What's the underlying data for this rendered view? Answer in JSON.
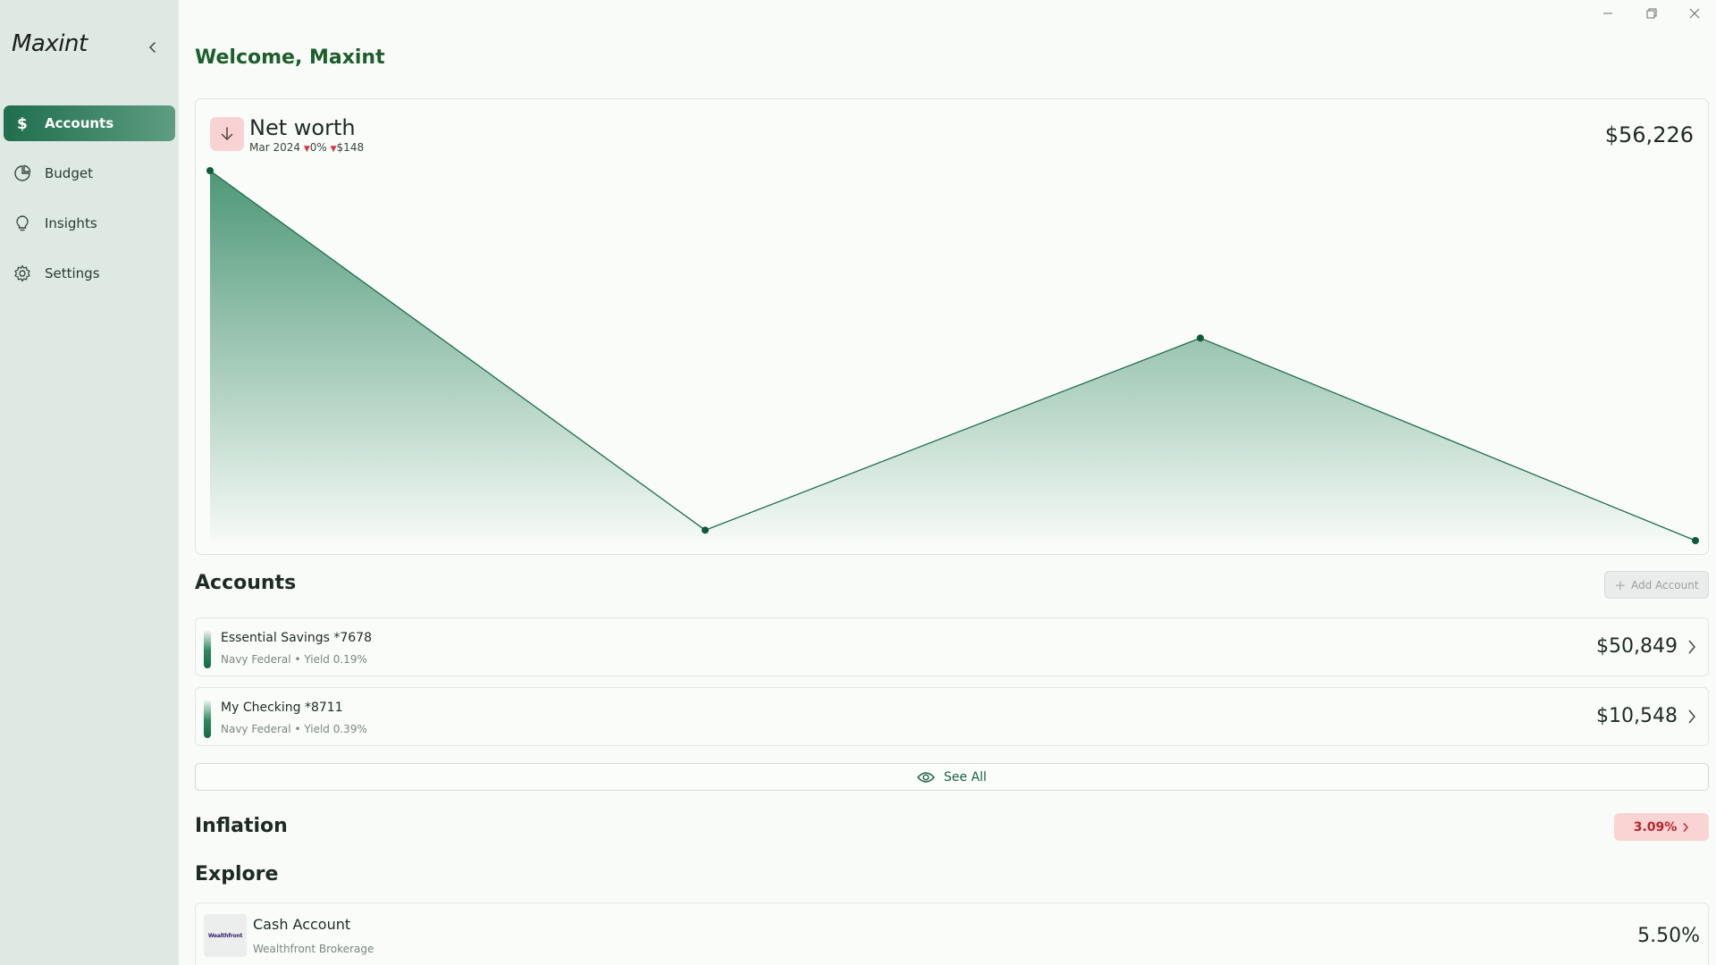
{
  "app": {
    "logo": "Maxint"
  },
  "sidebar": {
    "items": [
      {
        "label": "Accounts",
        "icon": "dollar-icon",
        "active": true
      },
      {
        "label": "Budget",
        "icon": "pie-chart-icon",
        "active": false
      },
      {
        "label": "Insights",
        "icon": "lightbulb-icon",
        "active": false
      },
      {
        "label": "Settings",
        "icon": "gear-icon",
        "active": false
      }
    ]
  },
  "header": {
    "welcome": "Welcome, Maxint"
  },
  "net_worth": {
    "title": "Net worth",
    "period": "Mar 2024",
    "change_pct": "0%",
    "change_amt": "$148",
    "value": "$56,226",
    "trend": "down",
    "colors": {
      "line": "#1f6e4e",
      "fill_top": "#3f8f6c",
      "down_badge": "#f9d3d3"
    }
  },
  "chart_data": {
    "type": "area",
    "x": [
      "",
      "",
      "",
      ""
    ],
    "series": [
      {
        "values": [
          56900,
          56245,
          56595,
          56226
        ]
      }
    ],
    "grid": false,
    "legend": "none"
  },
  "accounts": {
    "title": "Accounts",
    "add_label": "Add Account",
    "items": [
      {
        "name": "Essential Savings *7678",
        "institution": "Navy Federal",
        "yield": "Yield 0.19%",
        "amount": "$50,849"
      },
      {
        "name": "My Checking *8711",
        "institution": "Navy Federal",
        "yield": "Yield 0.39%",
        "amount": "$10,548"
      }
    ],
    "separator": "•",
    "see_all": "See All"
  },
  "inflation": {
    "title": "Inflation",
    "value": "3.09%"
  },
  "explore": {
    "title": "Explore",
    "items": [
      {
        "logo_text": "Wealthfront",
        "name": "Cash Account",
        "provider": "Wealthfront Brokerage",
        "rate": "5.50%"
      }
    ]
  }
}
